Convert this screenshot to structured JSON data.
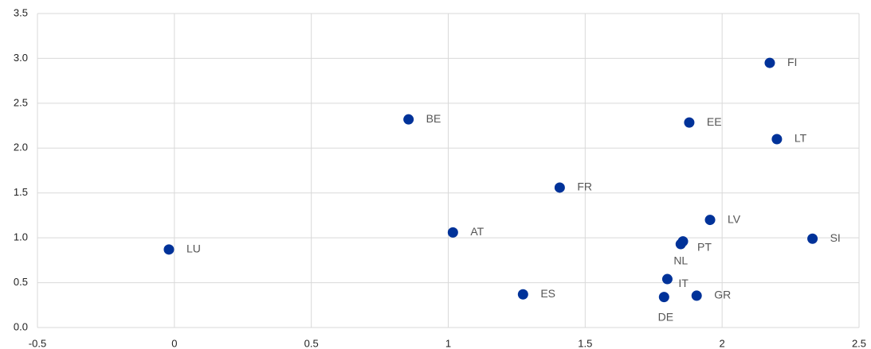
{
  "chart_data": {
    "type": "scatter",
    "color": "#003299",
    "grid": true,
    "labels": [
      "FI",
      "BE",
      "EE",
      "LT",
      "FR",
      "LV",
      "SI",
      "AT",
      "LU",
      "PT",
      "NL",
      "IT",
      "ES",
      "GR",
      "DE"
    ],
    "x": [
      2.174,
      0.855,
      1.88,
      2.2,
      1.407,
      1.956,
      2.33,
      1.017,
      -0.02,
      1.857,
      1.849,
      1.8,
      1.273,
      1.907,
      1.788
    ],
    "values": [
      2.95,
      2.32,
      2.285,
      2.1,
      1.56,
      1.2,
      0.99,
      1.06,
      0.87,
      0.96,
      0.93,
      0.54,
      0.37,
      0.355,
      0.34
    ],
    "xlim": [
      -0.5,
      2.5
    ],
    "xticks": [
      -0.5,
      0,
      0.5,
      1,
      1.5,
      2,
      2.5
    ],
    "ylim": [
      0,
      3.5
    ],
    "yticks": [
      {
        "value": 0,
        "label": "0.0"
      },
      0.5,
      {
        "value": 1,
        "label": "1.0"
      },
      1.5,
      {
        "value": 2,
        "label": "2.0"
      },
      2.5,
      {
        "value": 3,
        "label": "3.0"
      },
      3.5
    ]
  }
}
